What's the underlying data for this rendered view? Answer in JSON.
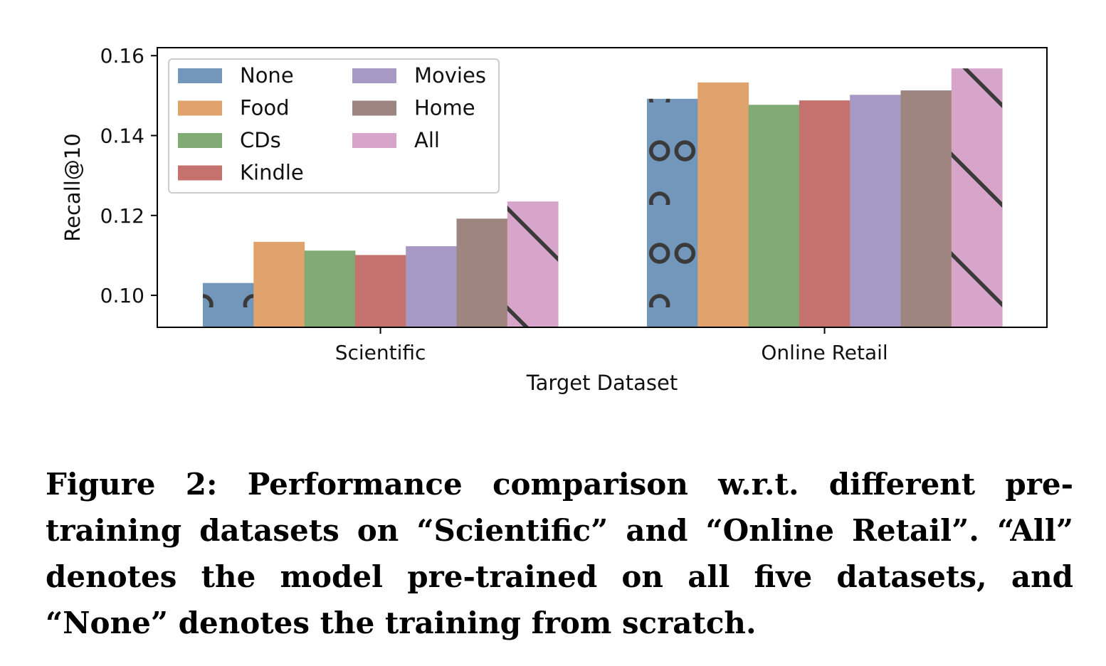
{
  "chart_data": {
    "type": "bar",
    "xlabel": "Target Dataset",
    "ylabel": "Recall@10",
    "ylim": [
      0.092,
      0.162
    ],
    "yticks": [
      "0.10",
      "0.12",
      "0.14",
      "0.16"
    ],
    "ytick_values": [
      0.1,
      0.12,
      0.14,
      0.16
    ],
    "grid": false,
    "legend_position": "top-left",
    "legend_columns": 2,
    "categories": [
      "Scientific",
      "Online Retail"
    ],
    "series": [
      {
        "name": "None",
        "color": "#7396bb",
        "pattern": "circles",
        "values": [
          0.1031,
          0.1492
        ]
      },
      {
        "name": "Food",
        "color": "#e0a36e",
        "pattern": "none",
        "values": [
          0.1134,
          0.1533
        ]
      },
      {
        "name": "CDs",
        "color": "#80ab74",
        "pattern": "none",
        "values": [
          0.1112,
          0.1477
        ]
      },
      {
        "name": "Kindle",
        "color": "#c5726e",
        "pattern": "none",
        "values": [
          0.1101,
          0.1488
        ]
      },
      {
        "name": "Movies",
        "color": "#a898c4",
        "pattern": "none",
        "values": [
          0.1123,
          0.1502
        ]
      },
      {
        "name": "Home",
        "color": "#9e8580",
        "pattern": "none",
        "values": [
          0.1192,
          0.1513
        ]
      },
      {
        "name": "All",
        "color": "#d6a5c9",
        "pattern": "diagonal",
        "values": [
          0.1235,
          0.1568
        ]
      }
    ]
  },
  "caption": "Figure 2: Performance comparison w.r.t. different pre-training datasets on “Scientific” and “Online Retail”. “All” denotes the model pre-trained on all five datasets, and “None” denotes the training from scratch."
}
